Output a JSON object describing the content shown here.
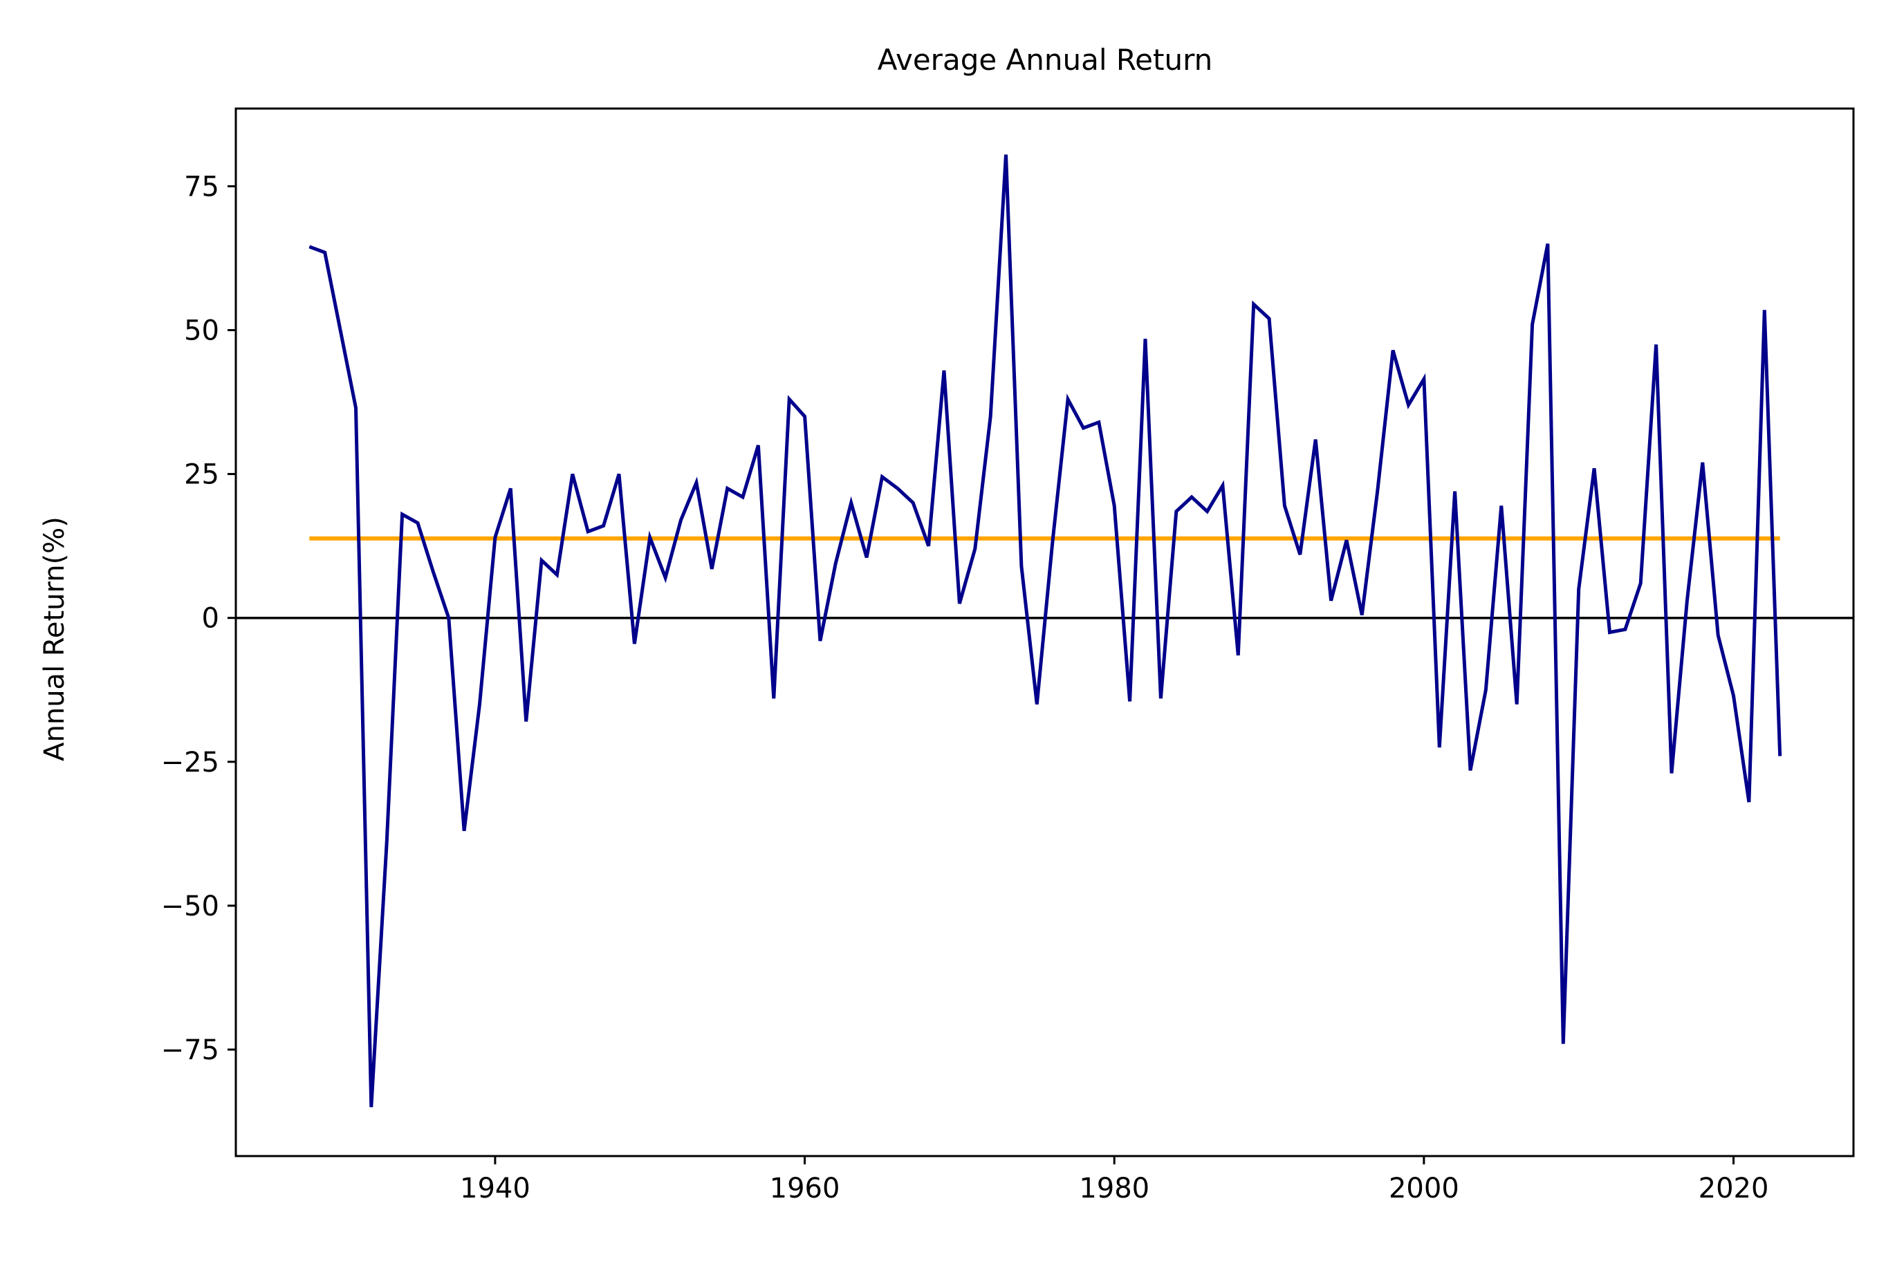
{
  "chart_data": {
    "type": "line",
    "title": "Average Annual Return",
    "xlabel": "",
    "ylabel": "Annual Return(%)",
    "xlim": [
      1923.25,
      2027.75
    ],
    "ylim": [
      -93.5,
      88.5
    ],
    "xticks": [
      1940,
      1960,
      1980,
      2000,
      2020
    ],
    "yticks": [
      75,
      50,
      25,
      0,
      -25,
      -50,
      -75
    ],
    "ytick_labels": [
      "75",
      "50",
      "25",
      "0",
      "−25",
      "−50",
      "−75"
    ],
    "grid": false,
    "zero_line": 0,
    "colors": {
      "returns": "#00008b",
      "average": "#ffa500",
      "zero": "#000000"
    },
    "series": [
      {
        "key": "returns",
        "x": [
          1928,
          1929,
          1930,
          1931,
          1932,
          1933,
          1934,
          1935,
          1936,
          1937,
          1938,
          1939,
          1940,
          1941,
          1942,
          1943,
          1944,
          1945,
          1946,
          1947,
          1948,
          1949,
          1950,
          1951,
          1952,
          1953,
          1954,
          1955,
          1956,
          1957,
          1958,
          1959,
          1960,
          1961,
          1962,
          1963,
          1964,
          1965,
          1966,
          1967,
          1968,
          1969,
          1970,
          1971,
          1972,
          1973,
          1974,
          1975,
          1976,
          1977,
          1978,
          1979,
          1980,
          1981,
          1982,
          1983,
          1984,
          1985,
          1986,
          1987,
          1988,
          1989,
          1990,
          1991,
          1992,
          1993,
          1994,
          1995,
          1996,
          1997,
          1998,
          1999,
          2000,
          2001,
          2002,
          2003,
          2004,
          2005,
          2006,
          2007,
          2008,
          2009,
          2010,
          2011,
          2012,
          2013,
          2014,
          2015,
          2016,
          2017,
          2018,
          2019,
          2020,
          2021,
          2022,
          2023
        ],
        "y": [
          64.5,
          63.5,
          50,
          36.5,
          -85,
          -39,
          18,
          16.5,
          8,
          0,
          -37,
          -15,
          14,
          22.5,
          -18,
          10,
          7.5,
          25,
          15,
          16,
          25,
          -4.5,
          14,
          7,
          17,
          23.5,
          8.5,
          22.5,
          21,
          30,
          -14,
          38,
          35,
          -4,
          9.5,
          20,
          10.5,
          24.5,
          22.5,
          20,
          12.5,
          43,
          2.5,
          12,
          35,
          80.5,
          9,
          -15,
          13,
          38,
          33,
          34,
          19.5,
          -14.5,
          48.5,
          -14,
          18.5,
          21,
          18.5,
          23,
          -6.5,
          54.5,
          52,
          19.5,
          11,
          31,
          3,
          13.5,
          0.5,
          22,
          46.5,
          37,
          41.5,
          -22.5,
          22,
          -26.5,
          -12.5,
          19.5,
          -15,
          51,
          65,
          -74,
          5,
          26,
          -2.5,
          -2,
          6,
          47.5,
          -27,
          3,
          27,
          -3,
          -13.5,
          -32,
          53.5,
          -24
        ]
      },
      {
        "key": "average",
        "x": [
          1928,
          2023
        ],
        "y": [
          13.8,
          13.8
        ]
      }
    ]
  }
}
